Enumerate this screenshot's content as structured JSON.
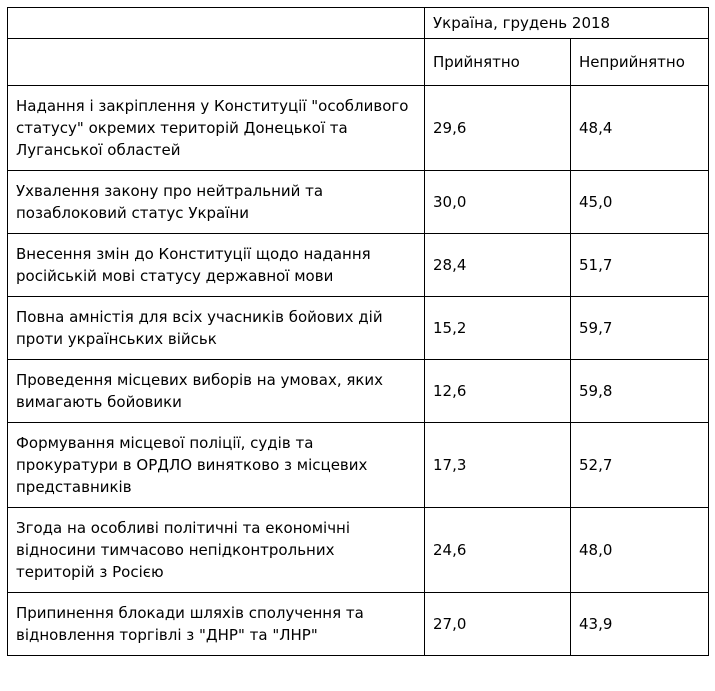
{
  "table": {
    "header_group": "Україна, грудень 2018",
    "columns": [
      "Прийнятно",
      "Неприйнятно"
    ],
    "rows": [
      {
        "label": "Надання і закріплення у Конституції \"особливого статусу\" окремих територій Донецької та Луганської областей",
        "acceptable": "29,6",
        "unacceptable": "48,4"
      },
      {
        "label": "Ухвалення закону про нейтральний та позаблоковий статус України",
        "acceptable": "30,0",
        "unacceptable": "45,0"
      },
      {
        "label": "Внесення змін до Конституції щодо надання російській мові статусу державної мови",
        "acceptable": "28,4",
        "unacceptable": "51,7"
      },
      {
        "label": "Повна амністія для всіх учасників бойових дій проти українських військ",
        "acceptable": "15,2",
        "unacceptable": "59,7"
      },
      {
        "label": "Проведення місцевих виборів на умовах, яких вимагають бойовики",
        "acceptable": "12,6",
        "unacceptable": "59,8"
      },
      {
        "label": "Формування місцевої поліції, судів та прокуратури в ОРДЛО винятково з місцевих представників",
        "acceptable": "17,3",
        "unacceptable": "52,7"
      },
      {
        "label": "Згода на особливі політичні та економічні відносини тимчасово непідконтрольних територій з Росією",
        "acceptable": "24,6",
        "unacceptable": "48,0"
      },
      {
        "label": "Припинення блокади шляхів сполучення та відновлення торгівлі з \"ДНР\" та \"ЛНР\"",
        "acceptable": "27,0",
        "unacceptable": "43,9"
      }
    ]
  },
  "chart_data": {
    "type": "table",
    "title": "Україна, грудень 2018",
    "columns": [
      "Прийнятно",
      "Неприйнятно"
    ],
    "categories": [
      "Надання і закріплення у Конституції \"особливого статусу\" окремих територій Донецької та Луганської областей",
      "Ухвалення закону про нейтральний та позаблоковий статус України",
      "Внесення змін до Конституції щодо надання російській мові статусу державної мови",
      "Повна амністія для всіх учасників бойових дій проти українських військ",
      "Проведення місцевих виборів на умовах, яких вимагають бойовики",
      "Формування місцевої поліції, судів та прокуратури в ОРДЛО винятково з місцевих представників",
      "Згода на особливі політичні та економічні відносини тимчасово непідконтрольних територій з Росією",
      "Припинення блокади шляхів сполучення та відновлення торгівлі з \"ДНР\" та \"ЛНР\""
    ],
    "series": [
      {
        "name": "Прийнятно",
        "values": [
          29.6,
          30.0,
          28.4,
          15.2,
          12.6,
          17.3,
          24.6,
          27.0
        ]
      },
      {
        "name": "Неприйнятно",
        "values": [
          48.4,
          45.0,
          51.7,
          59.7,
          59.8,
          52.7,
          48.0,
          43.9
        ]
      }
    ],
    "value_format": "percent, comma decimal separator",
    "layout": "matrix table with merged group header over two value columns"
  },
  "colors": {
    "background": "#ffffff",
    "border": "#000000",
    "text": "#000000"
  }
}
